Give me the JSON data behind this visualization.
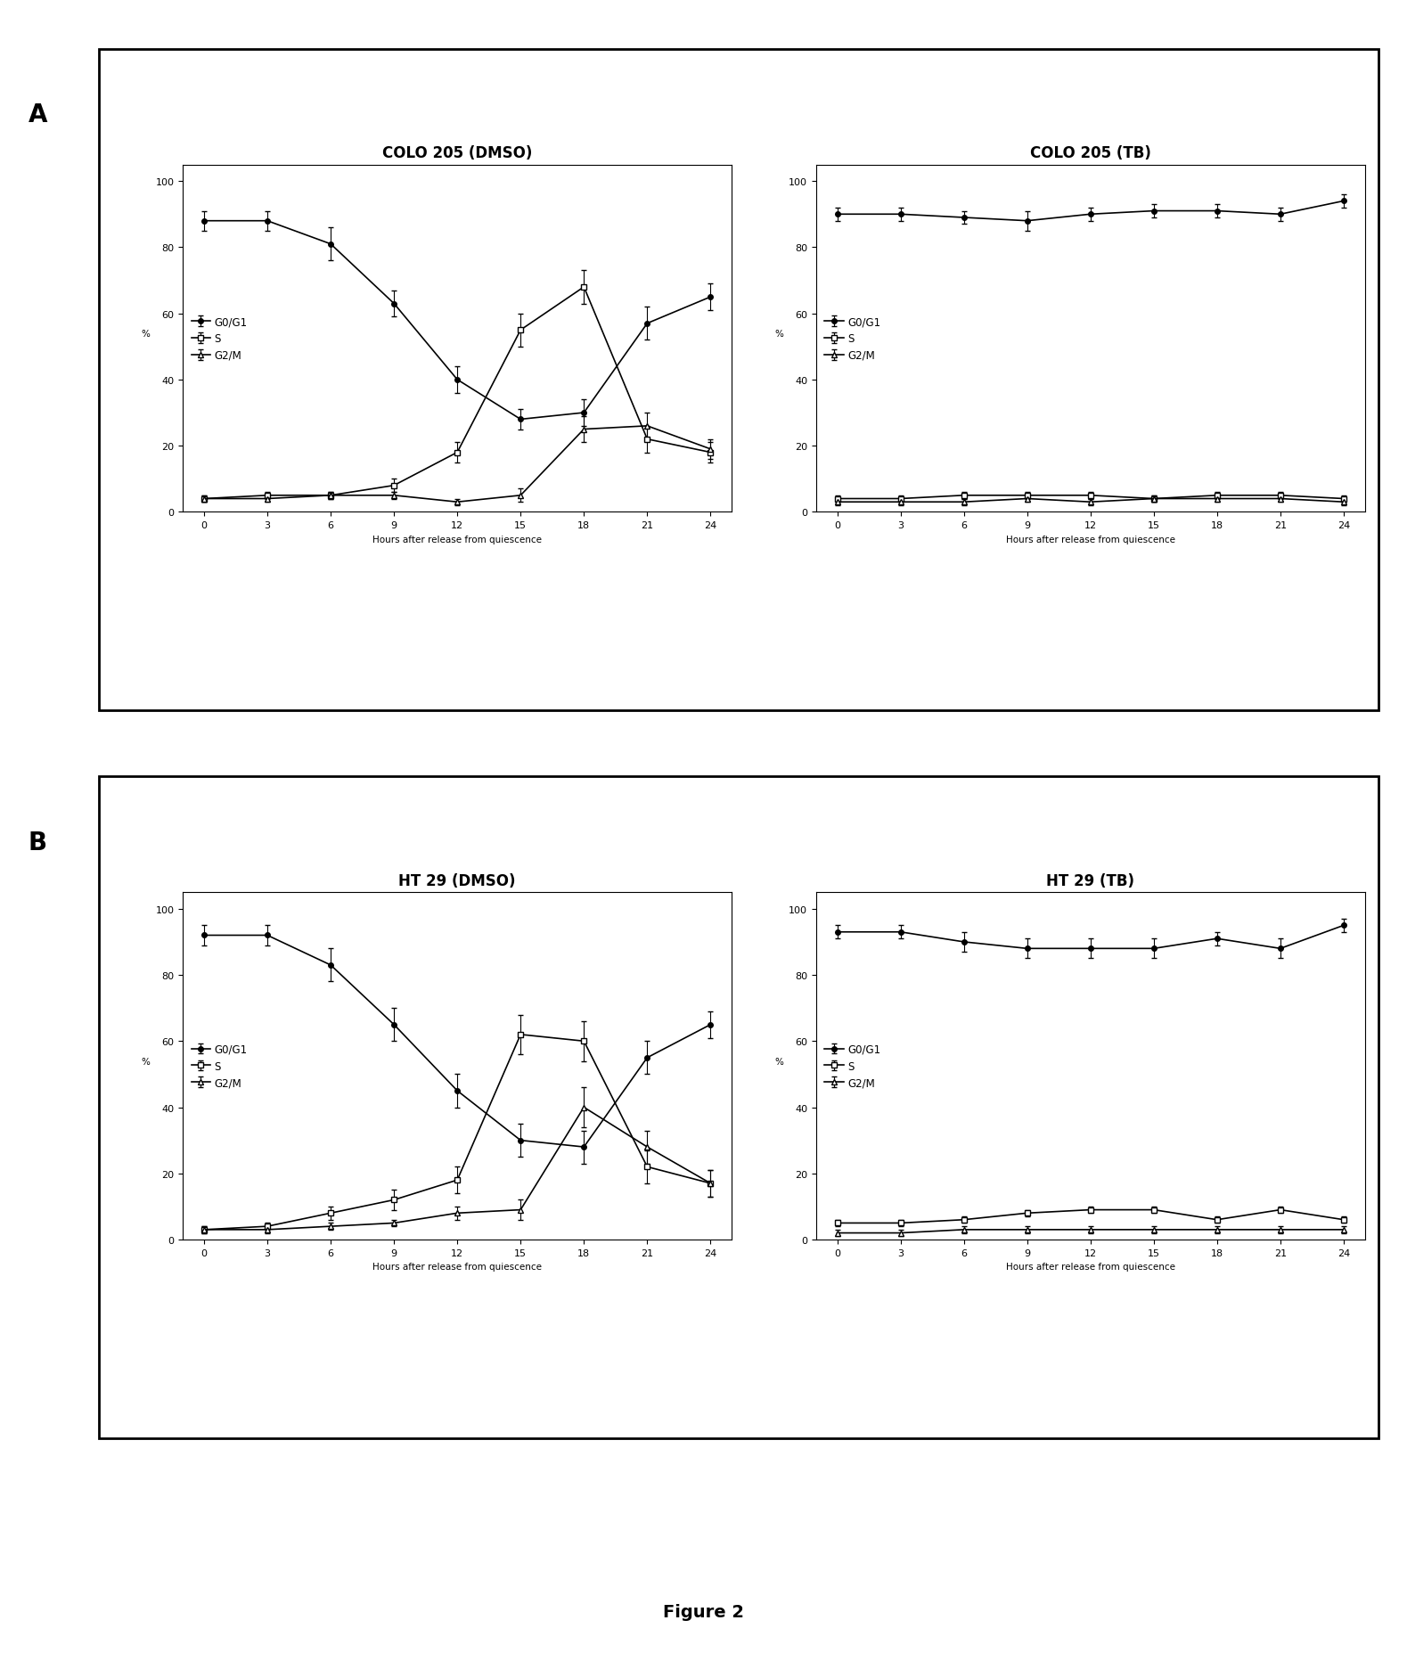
{
  "x_ticks": [
    0,
    3,
    6,
    9,
    12,
    15,
    18,
    21,
    24
  ],
  "xlabel": "Hours after release from quiescence",
  "ylabel": "%",
  "panel_A_DMSO": {
    "title": "COLO 205 (DMSO)",
    "G0G1_y": [
      88,
      88,
      81,
      63,
      40,
      28,
      30,
      57,
      65
    ],
    "G0G1_yerr": [
      3,
      3,
      5,
      4,
      4,
      3,
      4,
      5,
      4
    ],
    "S_y": [
      4,
      5,
      5,
      8,
      18,
      55,
      68,
      22,
      18
    ],
    "S_yerr": [
      1,
      1,
      1,
      2,
      3,
      5,
      5,
      4,
      3
    ],
    "G2M_y": [
      4,
      4,
      5,
      5,
      3,
      5,
      25,
      26,
      19
    ],
    "G2M_yerr": [
      1,
      1,
      1,
      1,
      1,
      2,
      4,
      4,
      3
    ]
  },
  "panel_A_TB": {
    "title": "COLO 205 (TB)",
    "G0G1_y": [
      90,
      90,
      89,
      88,
      90,
      91,
      91,
      90,
      94
    ],
    "G0G1_yerr": [
      2,
      2,
      2,
      3,
      2,
      2,
      2,
      2,
      2
    ],
    "S_y": [
      4,
      4,
      5,
      5,
      5,
      4,
      5,
      5,
      4
    ],
    "S_yerr": [
      1,
      1,
      1,
      1,
      1,
      1,
      1,
      1,
      1
    ],
    "G2M_y": [
      3,
      3,
      3,
      4,
      3,
      4,
      4,
      4,
      3
    ],
    "G2M_yerr": [
      1,
      1,
      1,
      1,
      1,
      1,
      1,
      1,
      1
    ]
  },
  "panel_B_DMSO": {
    "title": "HT 29 (DMSO)",
    "G0G1_y": [
      92,
      92,
      83,
      65,
      45,
      30,
      28,
      55,
      65
    ],
    "G0G1_yerr": [
      3,
      3,
      5,
      5,
      5,
      5,
      5,
      5,
      4
    ],
    "S_y": [
      3,
      4,
      8,
      12,
      18,
      62,
      60,
      22,
      17
    ],
    "S_yerr": [
      1,
      1,
      2,
      3,
      4,
      6,
      6,
      5,
      4
    ],
    "G2M_y": [
      3,
      3,
      4,
      5,
      8,
      9,
      40,
      28,
      17
    ],
    "G2M_yerr": [
      1,
      1,
      1,
      1,
      2,
      3,
      6,
      5,
      4
    ]
  },
  "panel_B_TB": {
    "title": "HT 29 (TB)",
    "G0G1_y": [
      93,
      93,
      90,
      88,
      88,
      88,
      91,
      88,
      95
    ],
    "G0G1_yerr": [
      2,
      2,
      3,
      3,
      3,
      3,
      2,
      3,
      2
    ],
    "S_y": [
      5,
      5,
      6,
      8,
      9,
      9,
      6,
      9,
      6
    ],
    "S_yerr": [
      1,
      1,
      1,
      1,
      1,
      1,
      1,
      1,
      1
    ],
    "G2M_y": [
      2,
      2,
      3,
      3,
      3,
      3,
      3,
      3,
      3
    ],
    "G2M_yerr": [
      1,
      1,
      1,
      1,
      1,
      1,
      1,
      1,
      1
    ]
  },
  "legend_labels": [
    "G0/G1",
    "S",
    "G2/M"
  ],
  "line_color": "#000000",
  "title_fontsize": 12,
  "axis_fontsize": 8,
  "label_fontsize": 7.5,
  "legend_fontsize": 8.5,
  "figure_label_fontsize": 20,
  "figure_caption": "Figure 2",
  "ylim": [
    0,
    105
  ],
  "yticks": [
    0,
    20,
    40,
    60,
    80,
    100
  ]
}
